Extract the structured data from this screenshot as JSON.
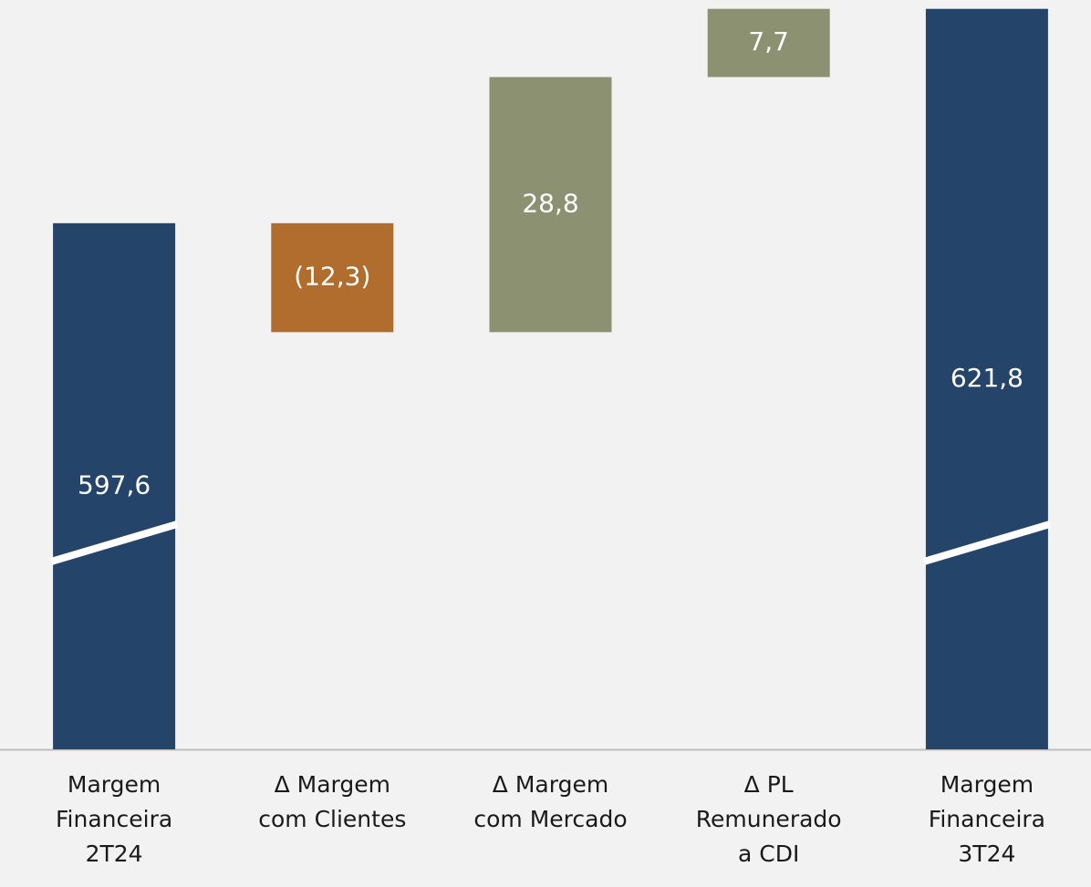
{
  "chart_data": {
    "type": "waterfall",
    "categories": [
      "Margem\nFinanceira\n2T24",
      "Δ Margem\ncom Clientes",
      "Δ Margem\ncom Mercado",
      "Δ PL\nRemunerado\na CDI",
      "Margem\nFinanceira\n3T24"
    ],
    "values": [
      597.6,
      -12.3,
      28.8,
      7.7,
      621.8
    ],
    "value_labels": [
      "597,6",
      "(12,3)",
      "28,8",
      "7,7",
      "621,8"
    ],
    "is_total": [
      true,
      false,
      false,
      false,
      true
    ],
    "colors": {
      "total": "#24446a",
      "increase": "#8b9171",
      "decrease": "#b06d2d"
    },
    "ylim": [
      538.2,
      622.8
    ],
    "axis_break": true
  }
}
